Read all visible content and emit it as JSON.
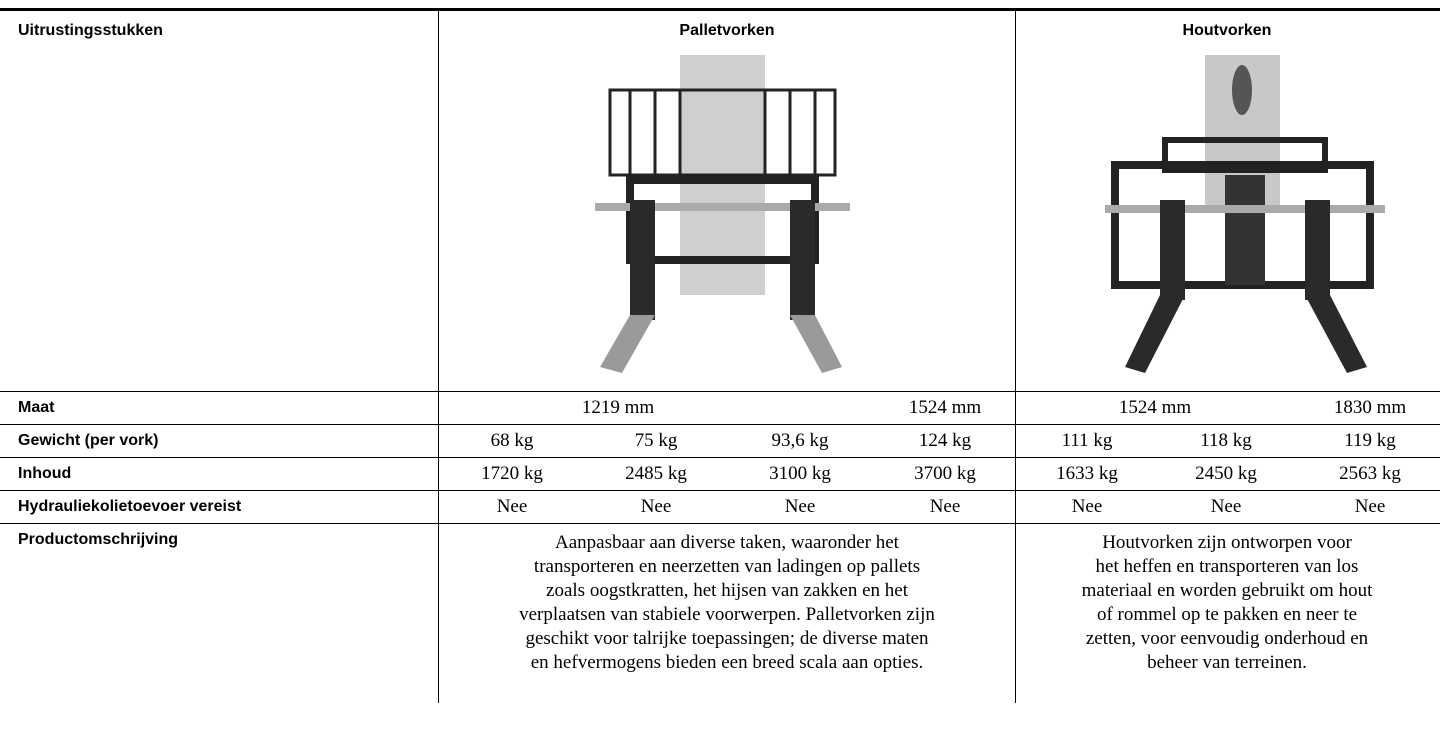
{
  "table": {
    "header": [
      "Uitrustingsstukken",
      "Palletvorken",
      "Houtvorken"
    ],
    "rows": [
      {
        "label": "Maat",
        "cells": [
          "1219 mm",
          "1524 mm",
          "1524 mm",
          "1830 mm"
        ]
      },
      {
        "label": "Gewicht (per vork)",
        "cells": [
          "68 kg",
          "75 kg",
          "93,6 kg",
          "124 kg",
          "111 kg",
          "118 kg",
          "119 kg"
        ]
      },
      {
        "label": "Inhoud",
        "cells": [
          "1720 kg",
          "2485 kg",
          "3100 kg",
          "3700 kg",
          "1633 kg",
          "2450 kg",
          "2563 kg"
        ]
      },
      {
        "label": "Hydrauliekolietoevoer vereist",
        "cells": [
          "Nee",
          "Nee",
          "Nee",
          "Nee",
          "Nee",
          "Nee",
          "Nee"
        ]
      },
      {
        "label": "Productomschrijving",
        "descriptions": [
          [
            "Aanpasbaar aan diverse taken, waaronder het",
            "transporteren en neerzetten van ladingen op pallets",
            "zoals oogstkratten, het hijsen van zakken en het",
            "verplaatsen van stabiele voorwerpen. Palletvorken zijn",
            "geschikt voor talrijke toepassingen; de diverse maten",
            "en hefvermogens bieden een breed scala aan opties."
          ],
          [
            "Houtvorken zijn ontworpen voor",
            "het heffen en transporteren van los",
            "materiaal en worden gebruikt om hout",
            "of rommel op te pakken en neer te",
            "zetten, voor eenvoudig onderhoud en",
            "beheer van terreinen."
          ]
        ]
      }
    ]
  }
}
